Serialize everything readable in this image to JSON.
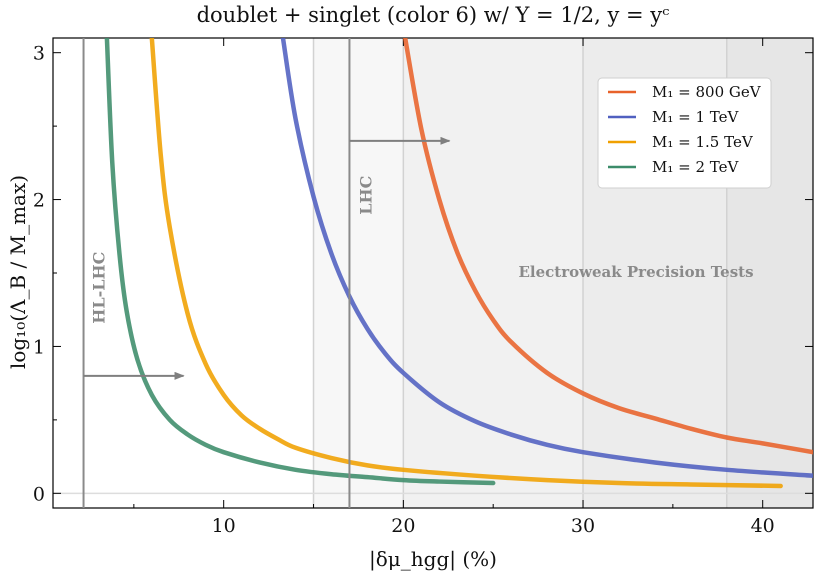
{
  "chart_data": {
    "type": "line",
    "title": "doublet + singlet (color 6) w/ Y = 1/2,  y = yᶜ",
    "xlabel": "|δμ_hgg| (%)",
    "ylabel": "log₁₀(Λ_B / M_max)",
    "xlim": [
      0.5,
      42.8
    ],
    "ylim": [
      -0.1,
      3.1
    ],
    "xticks": [
      10,
      20,
      30,
      40
    ],
    "yticks": [
      0,
      1,
      2,
      3
    ],
    "grid": false,
    "legend": "top-right",
    "series": [
      {
        "name": "M₁ = 800 GeV",
        "color": "#e8622a",
        "x": [
          20.1,
          21,
          22,
          23,
          24,
          25,
          26,
          28,
          30,
          32,
          34,
          36,
          38,
          40,
          42.8
        ],
        "y": [
          3.1,
          2.48,
          2.0,
          1.64,
          1.38,
          1.18,
          1.03,
          0.82,
          0.68,
          0.58,
          0.51,
          0.44,
          0.38,
          0.34,
          0.28
        ]
      },
      {
        "name": "M₁ = 1 TeV",
        "color": "#5060c0",
        "x": [
          13.3,
          14,
          15,
          16,
          17,
          18,
          19,
          20,
          22,
          24,
          26,
          28,
          30,
          34,
          38,
          42.8
        ],
        "y": [
          3.1,
          2.55,
          2.02,
          1.63,
          1.34,
          1.12,
          0.95,
          0.82,
          0.62,
          0.49,
          0.4,
          0.33,
          0.28,
          0.21,
          0.16,
          0.12
        ]
      },
      {
        "name": "M₁ = 1.5 TeV",
        "color": "#f0a000",
        "x": [
          6.0,
          6.5,
          7,
          8,
          9,
          10,
          11,
          12,
          13,
          14,
          16,
          18,
          20,
          24,
          28,
          32,
          36,
          41.0
        ],
        "y": [
          3.1,
          2.3,
          1.81,
          1.22,
          0.88,
          0.67,
          0.53,
          0.44,
          0.37,
          0.31,
          0.24,
          0.19,
          0.16,
          0.12,
          0.09,
          0.07,
          0.06,
          0.05
        ]
      },
      {
        "name": "M₁ = 2 TeV",
        "color": "#3c8c6a",
        "x": [
          3.5,
          3.8,
          4.2,
          4.6,
          5.2,
          6,
          7,
          8,
          9,
          10,
          12,
          14,
          16,
          18,
          20,
          22,
          25.0
        ],
        "y": [
          3.1,
          2.25,
          1.63,
          1.24,
          0.91,
          0.67,
          0.5,
          0.4,
          0.33,
          0.28,
          0.21,
          0.16,
          0.13,
          0.11,
          0.09,
          0.08,
          0.07
        ]
      }
    ],
    "annotations": {
      "hl_lhc": {
        "label": "HL-LHC",
        "x": 2.2
      },
      "lhc": {
        "label": "LHC",
        "x": 17.0
      },
      "ewpt": {
        "label": "Electroweak Precision Tests",
        "x_start": 15.0,
        "bands": [
          15.0,
          20.0,
          30.0,
          38.0
        ]
      }
    }
  }
}
